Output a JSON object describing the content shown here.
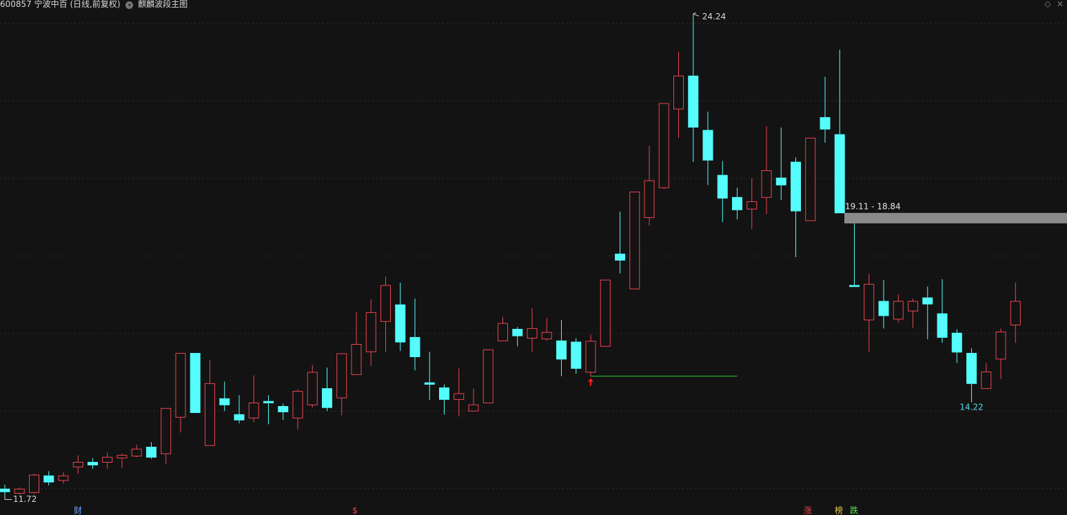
{
  "chart_data": {
    "type": "candlestick",
    "title": "600857 宁波中百 (日线,前复权)",
    "indicator": "麒麟波段主图",
    "open": [
      11.99,
      11.88,
      11.9,
      12.33,
      12.21,
      12.56,
      12.68,
      12.68,
      12.79,
      12.84,
      13.07,
      12.9,
      13.84,
      15.49,
      13.11,
      14.32,
      13.91,
      13.82,
      14.25,
      14.12,
      13.82,
      14.16,
      14.58,
      14.34,
      14.94,
      15.53,
      16.31,
      16.74,
      15.9,
      14.73,
      14.6,
      14.3,
      14.0,
      14.21,
      15.81,
      16.11,
      15.88,
      15.86,
      15.81,
      15.78,
      15.0,
      15.67,
      18.05,
      17.15,
      18.99,
      19.76,
      21.79,
      22.64,
      21.24,
      20.08,
      19.51,
      19.21,
      19.51,
      20.01,
      20.42,
      18.91,
      21.57,
      21.13,
      17.24,
      16.35,
      16.83,
      16.37,
      16.58,
      16.92,
      16.51,
      16.01,
      15.49,
      14.58,
      15.34,
      16.22
    ],
    "high": [
      12.1,
      12.03,
      12.38,
      12.45,
      12.42,
      12.86,
      12.79,
      12.93,
      12.91,
      13.13,
      13.2,
      14.07,
      15.49,
      15.49,
      15.32,
      14.76,
      14.41,
      14.92,
      14.41,
      14.19,
      14.56,
      15.19,
      15.12,
      15.48,
      16.56,
      16.88,
      17.47,
      17.31,
      16.9,
      15.53,
      14.69,
      15.1,
      14.58,
      15.58,
      16.43,
      16.17,
      16.65,
      16.4,
      16.35,
      15.88,
      15.97,
      17.38,
      19.14,
      19.65,
      20.84,
      21.93,
      23.26,
      24.24,
      21.72,
      20.45,
      19.76,
      20.01,
      21.34,
      21.31,
      20.54,
      21.04,
      22.62,
      23.32,
      18.84,
      17.54,
      17.38,
      17.01,
      16.9,
      17.21,
      17.4,
      16.11,
      15.62,
      15.24,
      16.13,
      17.31
    ],
    "low": [
      11.72,
      11.85,
      11.87,
      12.08,
      12.13,
      12.38,
      12.51,
      12.51,
      12.54,
      12.81,
      12.77,
      12.63,
      13.45,
      13.96,
      13.11,
      14.0,
      13.68,
      13.71,
      13.66,
      13.77,
      13.52,
      14.09,
      14.0,
      13.89,
      14.94,
      15.16,
      15.53,
      15.55,
      15.05,
      14.29,
      13.91,
      13.86,
      14.0,
      14.21,
      15.81,
      15.67,
      15.53,
      15.81,
      14.9,
      14.96,
      14.9,
      15.67,
      17.55,
      17.15,
      18.78,
      19.72,
      21.04,
      20.42,
      19.83,
      18.87,
      18.94,
      18.69,
      19.08,
      19.44,
      17.97,
      18.91,
      20.92,
      19.11,
      17.21,
      15.52,
      16.13,
      16.28,
      16.15,
      15.85,
      15.76,
      15.24,
      14.22,
      14.58,
      14.83,
      15.76
    ],
    "close": [
      11.92,
      11.99,
      12.35,
      12.17,
      12.33,
      12.68,
      12.61,
      12.81,
      12.86,
      13.02,
      12.81,
      14.07,
      15.49,
      13.96,
      14.71,
      14.16,
      13.77,
      14.21,
      14.21,
      13.98,
      14.51,
      15.0,
      14.09,
      15.48,
      15.72,
      16.54,
      17.24,
      15.78,
      15.4,
      14.69,
      14.3,
      14.45,
      14.16,
      15.58,
      16.26,
      15.94,
      16.13,
      16.03,
      15.34,
      15.1,
      15.8,
      17.38,
      17.89,
      19.65,
      19.94,
      21.93,
      22.64,
      21.32,
      20.47,
      19.49,
      19.19,
      19.4,
      20.2,
      19.83,
      19.16,
      21.04,
      21.27,
      19.11,
      17.21,
      17.27,
      16.46,
      16.83,
      16.83,
      16.76,
      15.9,
      15.52,
      14.71,
      15.01,
      16.04,
      16.83
    ],
    "up_color": "#ee4450",
    "down_color": "#54fcfc",
    "ylim": [
      11.32,
      24.6
    ],
    "yticks": [
      12,
      14,
      16,
      18,
      20,
      22,
      24
    ],
    "grid": true,
    "gap": {
      "label": "19.11 - 18.84",
      "high": 19.11,
      "low": 18.84
    },
    "markers": [
      "财",
      "$",
      "涨",
      "榜",
      "跌"
    ]
  }
}
